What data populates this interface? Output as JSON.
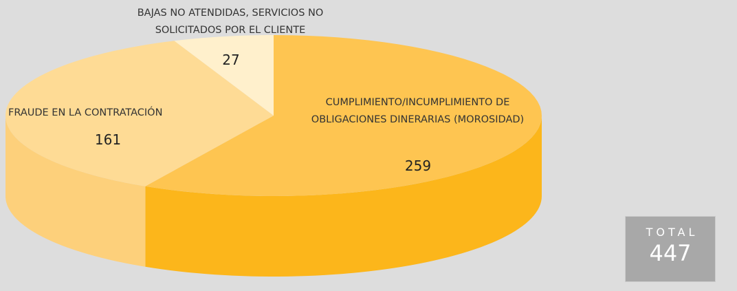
{
  "chart_data": {
    "type": "pie3d",
    "categories": [
      "CUMPLIMIENTO/INCUMPLIMIENTO DE OBLIGACIONES DINERARIAS (MOROSIDAD)",
      "FRAUDE EN LA CONTRATACIÓN",
      "BAJAS NO ATENDIDAS, SERVICIOS NO SOLICITADOS POR EL CLIENTE"
    ],
    "values": [
      259,
      161,
      27
    ],
    "colors": [
      "#fec551",
      "#fedb95",
      "#fff0cc"
    ],
    "side_colors": [
      "#fcb61b",
      "#fdd07b",
      "#fde6b0"
    ],
    "total": {
      "label": "TOTAL",
      "value": 447
    }
  }
}
